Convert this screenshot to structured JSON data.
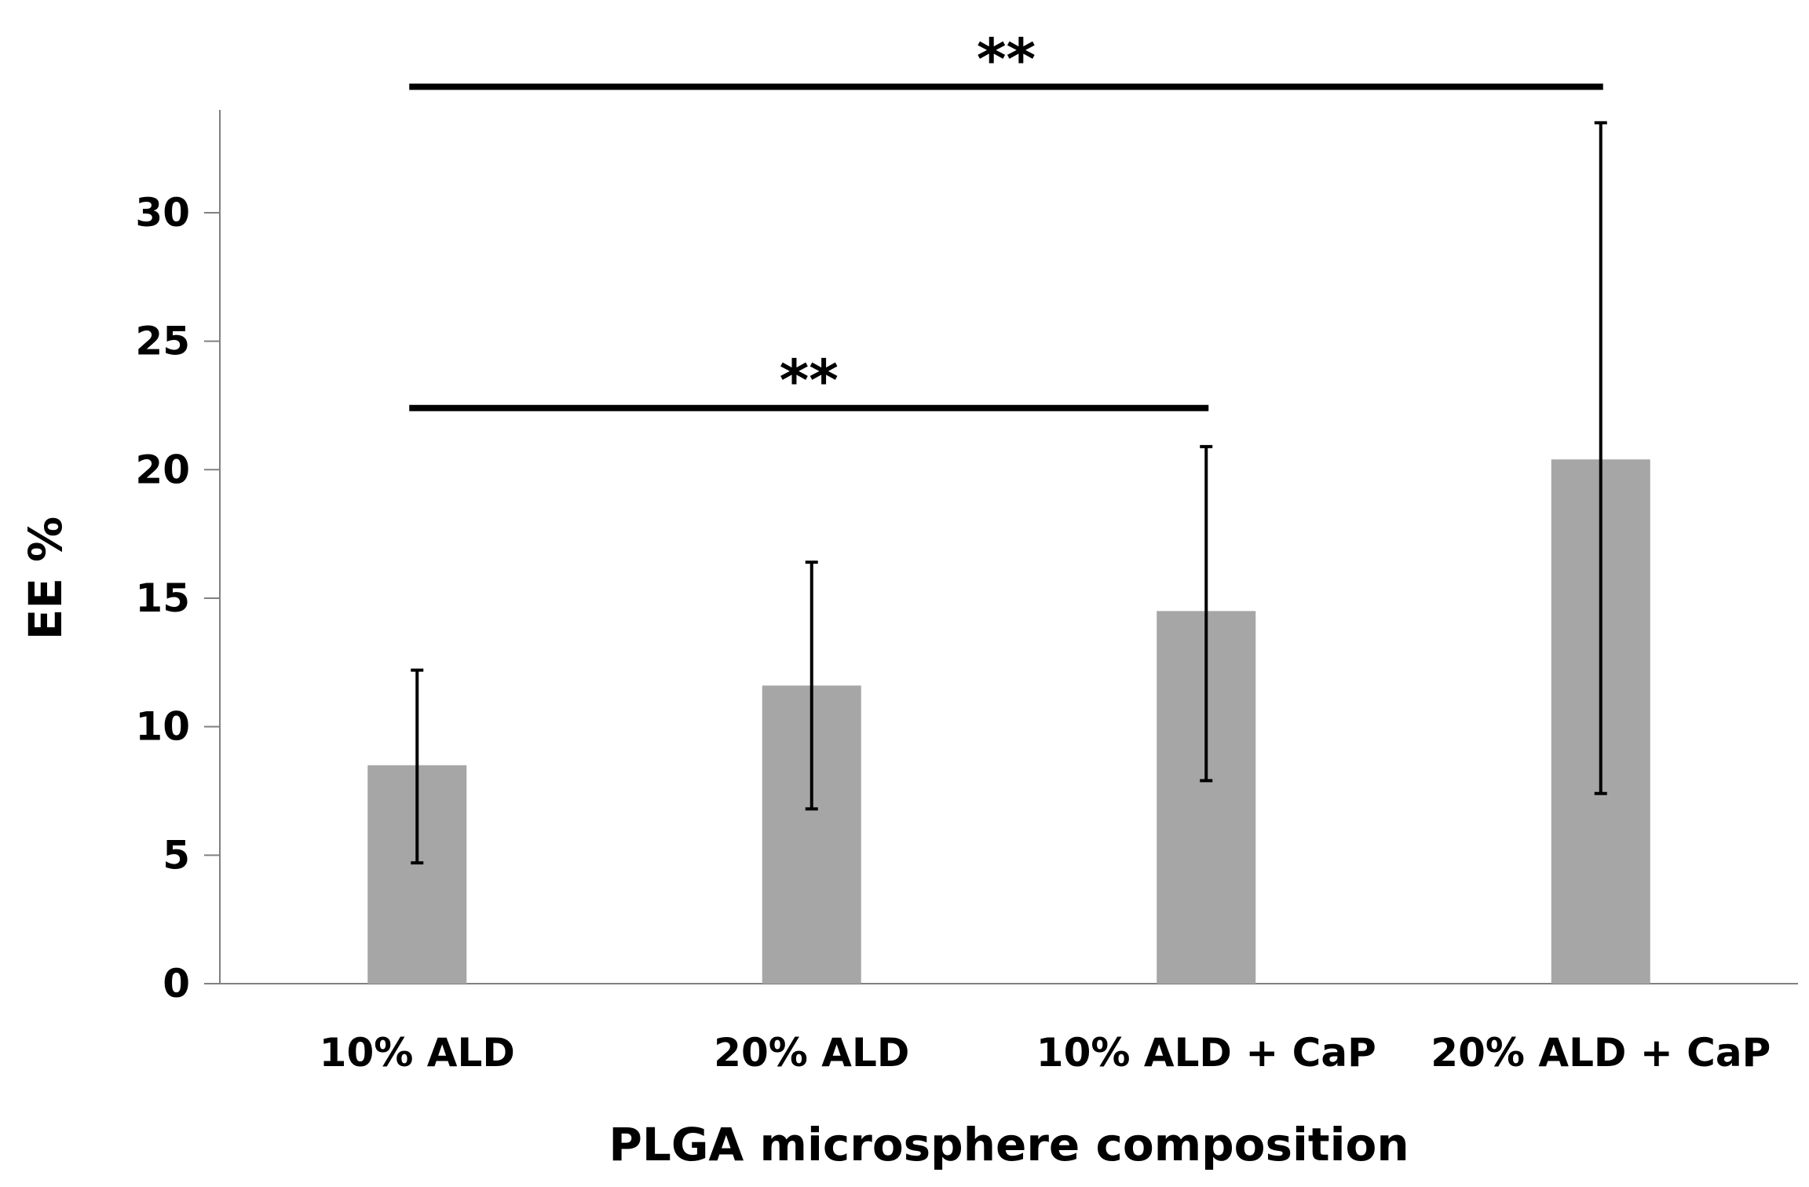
{
  "chart_data": {
    "type": "bar",
    "title": "",
    "xlabel": "PLGA microsphere composition",
    "ylabel": "EE %",
    "categories": [
      "10% ALD",
      "20% ALD",
      "10% ALD + CaP",
      "20% ALD + CaP"
    ],
    "values": [
      8.5,
      11.6,
      14.5,
      20.4
    ],
    "error_low": [
      4.7,
      6.8,
      7.9,
      7.4
    ],
    "error_high": [
      12.2,
      16.4,
      20.9,
      33.5
    ],
    "ylim": [
      0,
      34
    ],
    "yticks": [
      0,
      5,
      10,
      15,
      20,
      25,
      30
    ],
    "grid": false,
    "bar_color": "#a6a6a6",
    "significance": [
      {
        "from": 0,
        "to": 2,
        "label": "**",
        "y": 22.4
      },
      {
        "from": 0,
        "to": 3,
        "label": "**",
        "y": 34.9
      }
    ]
  }
}
